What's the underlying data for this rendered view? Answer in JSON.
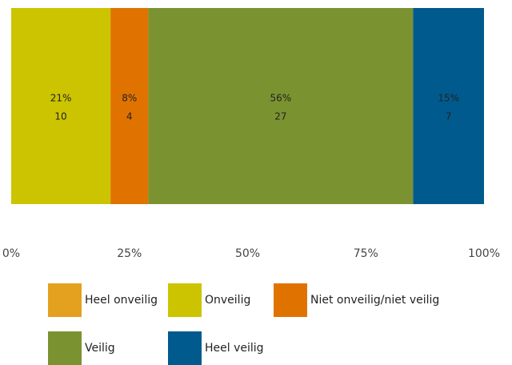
{
  "chart_data": {
    "type": "bar",
    "orientation": "horizontal",
    "stacked": true,
    "categories": [
      ""
    ],
    "series": [
      {
        "name": "Heel onveilig",
        "percent": 0,
        "count": 0,
        "color": "#E3A11F",
        "percent_label": "",
        "count_label": ""
      },
      {
        "name": "Onveilig",
        "percent": 21,
        "count": 10,
        "color": "#CCC400",
        "percent_label": "21%",
        "count_label": "10"
      },
      {
        "name": "Niet onveilig/niet veilig",
        "percent": 8,
        "count": 4,
        "color": "#E07300",
        "percent_label": "8%",
        "count_label": "4"
      },
      {
        "name": "Veilig",
        "percent": 56,
        "count": 27,
        "color": "#7B9230",
        "percent_label": "56%",
        "count_label": "27"
      },
      {
        "name": "Heel veilig",
        "percent": 15,
        "count": 7,
        "color": "#005A8E",
        "percent_label": "15%",
        "count_label": "7"
      }
    ],
    "xlim": [
      0,
      100
    ],
    "x_ticks": [
      "0%",
      "25%",
      "50%",
      "75%",
      "100%"
    ],
    "grid": false,
    "legend_position": "bottom"
  }
}
